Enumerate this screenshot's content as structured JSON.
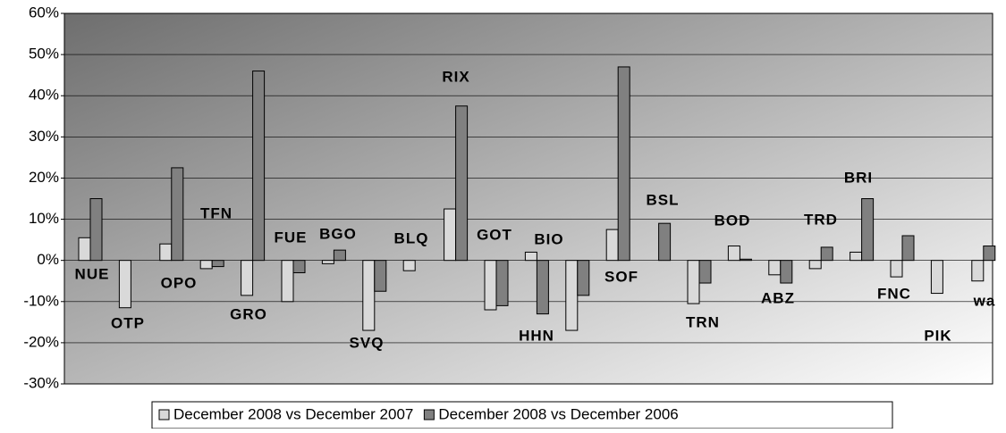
{
  "chart_data": {
    "type": "bar",
    "categories": [
      "NUE",
      "OTP",
      "OPO",
      "TFN",
      "GRO",
      "FUE",
      "BGO",
      "SVQ",
      "BLQ",
      "RIX",
      "GOT",
      "HHN",
      "BIO",
      "SOF",
      "BSL",
      "TRN",
      "BOD",
      "ABZ",
      "TRD",
      "BRI",
      "FNC",
      "PIK",
      "wa"
    ],
    "series": [
      {
        "name": "December 2008 vs December 2007",
        "color": "#d9d9d9",
        "values": [
          5.5,
          -11.5,
          4,
          -2,
          -8.5,
          -10,
          -0.8,
          -17,
          -2.5,
          12.5,
          -12,
          2,
          -17,
          7.5,
          null,
          -10.5,
          3.5,
          -3.5,
          -2,
          2,
          -4,
          -8,
          -5
        ]
      },
      {
        "name": "December 2008 vs December 2006",
        "color": "#808080",
        "values": [
          15,
          null,
          22.5,
          -1.5,
          46,
          -3,
          2.5,
          -7.5,
          null,
          37.5,
          -11,
          -13,
          -8.5,
          47,
          9,
          -5.5,
          0.3,
          -5.5,
          3.2,
          15,
          6,
          null,
          3.5
        ]
      }
    ],
    "ylim": [
      -30,
      60
    ],
    "yticks": [
      {
        "value": -30,
        "label": "-30%"
      },
      {
        "value": -20,
        "label": "-20%"
      },
      {
        "value": -10,
        "label": "-10%"
      },
      {
        "value": 0,
        "label": "0%"
      },
      {
        "value": 10,
        "label": "10%"
      },
      {
        "value": 20,
        "label": "20%"
      },
      {
        "value": 30,
        "label": "30%"
      },
      {
        "value": 40,
        "label": "40%"
      },
      {
        "value": 50,
        "label": "50%"
      },
      {
        "value": 60,
        "label": "60%"
      }
    ],
    "grid": true
  }
}
